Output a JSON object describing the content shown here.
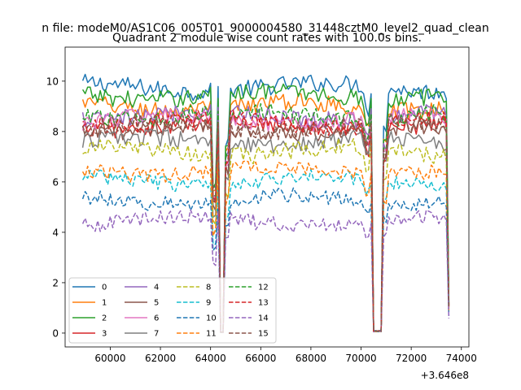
{
  "chart_data": {
    "type": "line",
    "suptitle": "n file: modeM0/AS1C06_005T01_9000004580_31448cztM0_level2_quad_clean",
    "title": "Quadrant 2 module wise count rates with 100.0s bins.",
    "xlabel": "",
    "ylabel": "",
    "x_offset_label": "+3.646e8",
    "xlim": [
      58200,
      74300
    ],
    "ylim": [
      -0.55,
      11.35
    ],
    "xticks": [
      60000,
      62000,
      64000,
      66000,
      68000,
      70000,
      72000,
      74000
    ],
    "xtick_labels": [
      "60000",
      "62000",
      "64000",
      "66000",
      "68000",
      "70000",
      "72000",
      "74000"
    ],
    "yticks": [
      0,
      2,
      4,
      6,
      8,
      10
    ],
    "ytick_labels": [
      "0",
      "2",
      "4",
      "6",
      "8",
      "10"
    ],
    "x_range": [
      58900,
      73500
    ],
    "bin_size": 100,
    "gaps": [
      {
        "start": 64200,
        "end": 64700
      },
      {
        "start": 70300,
        "end": 71000
      }
    ],
    "legend": {
      "location": "lower-left",
      "columns": 4
    },
    "series": [
      {
        "name": "0",
        "level": 9.75,
        "noise": 0.35,
        "style": "solid",
        "color": "#1f77b4"
      },
      {
        "name": "1",
        "level": 9.0,
        "noise": 0.35,
        "style": "solid",
        "color": "#ff7f0e"
      },
      {
        "name": "2",
        "level": 9.45,
        "noise": 0.35,
        "style": "solid",
        "color": "#2ca02c"
      },
      {
        "name": "3",
        "level": 8.25,
        "noise": 0.35,
        "style": "solid",
        "color": "#d62728"
      },
      {
        "name": "4",
        "level": 8.65,
        "noise": 0.35,
        "style": "solid",
        "color": "#9467bd"
      },
      {
        "name": "5",
        "level": 8.05,
        "noise": 0.35,
        "style": "solid",
        "color": "#8c564b"
      },
      {
        "name": "6",
        "level": 8.45,
        "noise": 0.35,
        "style": "solid",
        "color": "#e377c2"
      },
      {
        "name": "7",
        "level": 7.6,
        "noise": 0.35,
        "style": "solid",
        "color": "#7f7f7f"
      },
      {
        "name": "8",
        "level": 7.2,
        "noise": 0.35,
        "style": "dashed",
        "color": "#bcbd22"
      },
      {
        "name": "9",
        "level": 6.05,
        "noise": 0.3,
        "style": "dashed",
        "color": "#17becf"
      },
      {
        "name": "10",
        "level": 5.3,
        "noise": 0.3,
        "style": "dashed",
        "color": "#1f77b4"
      },
      {
        "name": "11",
        "level": 6.45,
        "noise": 0.3,
        "style": "dashed",
        "color": "#ff7f0e"
      },
      {
        "name": "12",
        "level": 8.65,
        "noise": 0.35,
        "style": "dashed",
        "color": "#2ca02c"
      },
      {
        "name": "13",
        "level": 8.35,
        "noise": 0.35,
        "style": "dashed",
        "color": "#d62728"
      },
      {
        "name": "14",
        "level": 4.45,
        "noise": 0.3,
        "style": "dashed",
        "color": "#9467bd"
      },
      {
        "name": "15",
        "level": 8.2,
        "noise": 0.35,
        "style": "dashed",
        "color": "#8c564b"
      }
    ]
  }
}
